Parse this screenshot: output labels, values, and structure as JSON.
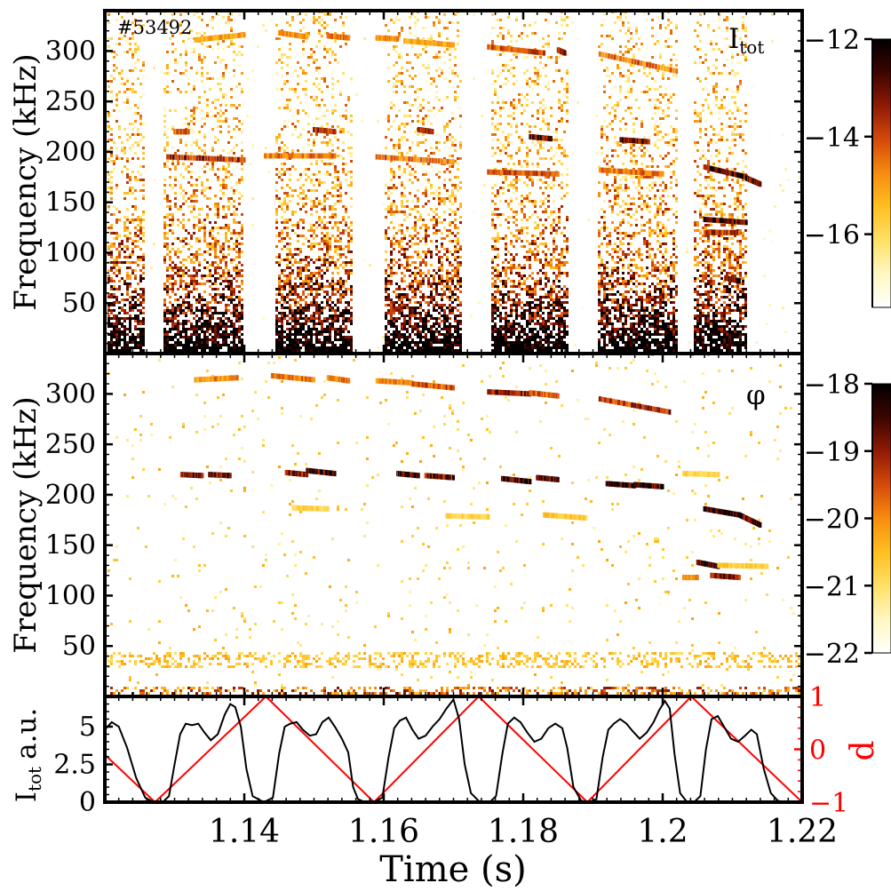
{
  "shot_label": "#53492",
  "colors": {
    "black": "#000000",
    "red": "#ff0000",
    "axis": "#000000"
  },
  "colormap": [
    "#ffffff",
    "#fff7c0",
    "#ffe066",
    "#ffbf1f",
    "#f78c10",
    "#d44a0a",
    "#8f1a06",
    "#3d0500",
    "#000000"
  ],
  "chart_data": [
    {
      "type": "heatmap",
      "id": "spectrogram_itot",
      "signal_label": "I",
      "signal_subscript": "tot",
      "ylabel": "Frequency (kHz)",
      "xlim": [
        1.12,
        1.22
      ],
      "ylim": [
        0,
        340
      ],
      "yticks": [
        50,
        100,
        150,
        200,
        250,
        300
      ],
      "colorbar": {
        "range": [
          -17.5,
          -12
        ],
        "ticks": [
          "−12",
          "−14",
          "−16"
        ],
        "tick_values": [
          -12,
          -14,
          -16
        ]
      },
      "active_windows": [
        [
          1.1203,
          1.1254
        ],
        [
          1.1283,
          1.1398
        ],
        [
          1.1441,
          1.1555
        ],
        [
          1.1598,
          1.1711
        ],
        [
          1.1752,
          1.1864
        ],
        [
          1.1905,
          1.2019
        ],
        [
          1.2043,
          1.212
        ]
      ],
      "mode_tracks": [
        {
          "t": [
            1.133,
            1.14
          ],
          "f": [
            311,
            316
          ],
          "z": 0.45
        },
        {
          "t": [
            1.145,
            1.149
          ],
          "f": [
            318,
            314
          ],
          "z": 0.5
        },
        {
          "t": [
            1.152,
            1.155
          ],
          "f": [
            315,
            313
          ],
          "z": 0.55
        },
        {
          "t": [
            1.159,
            1.162
          ],
          "f": [
            313,
            312
          ],
          "z": 0.5
        },
        {
          "t": [
            1.163,
            1.17
          ],
          "f": [
            310,
            306
          ],
          "z": 0.45
        },
        {
          "t": [
            1.175,
            1.183
          ],
          "f": [
            304,
            298
          ],
          "z": 0.6
        },
        {
          "t": [
            1.185,
            1.186
          ],
          "f": [
            301,
            298
          ],
          "z": 0.7
        },
        {
          "t": [
            1.191,
            1.202
          ],
          "f": [
            297,
            280
          ],
          "z": 0.55
        },
        {
          "t": [
            1.129,
            1.14
          ],
          "f": [
            195,
            192
          ],
          "z": 0.7
        },
        {
          "t": [
            1.143,
            1.153
          ],
          "f": [
            196,
            196
          ],
          "z": 0.55
        },
        {
          "t": [
            1.159,
            1.17
          ],
          "f": [
            195,
            190
          ],
          "z": 0.55
        },
        {
          "t": [
            1.175,
            1.185
          ],
          "f": [
            180,
            178
          ],
          "z": 0.6
        },
        {
          "t": [
            1.191,
            1.2
          ],
          "f": [
            182,
            178
          ],
          "z": 0.55
        },
        {
          "t": [
            1.13,
            1.132
          ],
          "f": [
            220,
            220
          ],
          "z": 0.6
        },
        {
          "t": [
            1.15,
            1.153
          ],
          "f": [
            222,
            220
          ],
          "z": 0.7
        },
        {
          "t": [
            1.165,
            1.167
          ],
          "f": [
            222,
            220
          ],
          "z": 0.7
        },
        {
          "t": [
            1.181,
            1.184
          ],
          "f": [
            215,
            213
          ],
          "z": 0.8
        },
        {
          "t": [
            1.194,
            1.198
          ],
          "f": [
            212,
            210
          ],
          "z": 0.8
        },
        {
          "t": [
            1.206,
            1.212
          ],
          "f": [
            185,
            175
          ],
          "z": 0.85
        },
        {
          "t": [
            1.212,
            1.214
          ],
          "f": [
            174,
            168
          ],
          "z": 0.85
        },
        {
          "t": [
            1.206,
            1.212
          ],
          "f": [
            133,
            130
          ],
          "z": 0.9
        },
        {
          "t": [
            1.206,
            1.211
          ],
          "f": [
            120,
            120
          ],
          "z": 0.7
        },
        {
          "t": [
            1.209,
            1.211
          ],
          "f": [
            75,
            72
          ],
          "z": 0.8
        }
      ]
    },
    {
      "type": "heatmap",
      "id": "spectrogram_phi",
      "signal_label": "φ",
      "ylabel": "Frequency (kHz)",
      "xlim": [
        1.12,
        1.22
      ],
      "ylim": [
        0,
        340
      ],
      "yticks": [
        50,
        100,
        150,
        200,
        250,
        300
      ],
      "colorbar": {
        "range": [
          -22,
          -18
        ],
        "ticks": [
          "−18",
          "−19",
          "−20",
          "−21",
          "−22"
        ],
        "tick_values": [
          -18,
          -19,
          -20,
          -21,
          -22
        ]
      },
      "mode_tracks": [
        {
          "t": [
            1.133,
            1.139
          ],
          "f": [
            314,
            316
          ],
          "z": 0.5
        },
        {
          "t": [
            1.144,
            1.15
          ],
          "f": [
            318,
            314
          ],
          "z": 0.55
        },
        {
          "t": [
            1.152,
            1.155
          ],
          "f": [
            316,
            313
          ],
          "z": 0.55
        },
        {
          "t": [
            1.159,
            1.164
          ],
          "f": [
            313,
            311
          ],
          "z": 0.5
        },
        {
          "t": [
            1.164,
            1.17
          ],
          "f": [
            310,
            306
          ],
          "z": 0.6
        },
        {
          "t": [
            1.175,
            1.181
          ],
          "f": [
            302,
            300
          ],
          "z": 0.75
        },
        {
          "t": [
            1.181,
            1.185
          ],
          "f": [
            301,
            298
          ],
          "z": 0.6
        },
        {
          "t": [
            1.191,
            1.201
          ],
          "f": [
            295,
            282
          ],
          "z": 0.7
        },
        {
          "t": [
            1.131,
            1.134
          ],
          "f": [
            220,
            219
          ],
          "z": 0.8
        },
        {
          "t": [
            1.135,
            1.138
          ],
          "f": [
            220,
            219
          ],
          "z": 0.8
        },
        {
          "t": [
            1.146,
            1.149
          ],
          "f": [
            222,
            220
          ],
          "z": 0.8
        },
        {
          "t": [
            1.149,
            1.153
          ],
          "f": [
            224,
            221
          ],
          "z": 0.9
        },
        {
          "t": [
            1.162,
            1.165
          ],
          "f": [
            221,
            219
          ],
          "z": 0.85
        },
        {
          "t": [
            1.166,
            1.17
          ],
          "f": [
            219,
            217
          ],
          "z": 0.8
        },
        {
          "t": [
            1.177,
            1.181
          ],
          "f": [
            216,
            213
          ],
          "z": 0.95
        },
        {
          "t": [
            1.182,
            1.185
          ],
          "f": [
            217,
            215
          ],
          "z": 0.9
        },
        {
          "t": [
            1.192,
            1.196
          ],
          "f": [
            211,
            209
          ],
          "z": 0.95
        },
        {
          "t": [
            1.196,
            1.2
          ],
          "f": [
            210,
            208
          ],
          "z": 0.9
        },
        {
          "t": [
            1.206,
            1.211
          ],
          "f": [
            186,
            180
          ],
          "z": 1.0
        },
        {
          "t": [
            1.211,
            1.214
          ],
          "f": [
            180,
            170
          ],
          "z": 0.9
        },
        {
          "t": [
            1.205,
            1.208
          ],
          "f": [
            133,
            129
          ],
          "z": 0.95
        },
        {
          "t": [
            1.207,
            1.211
          ],
          "f": [
            120,
            118
          ],
          "z": 0.8
        },
        {
          "t": [
            1.203,
            1.205
          ],
          "f": [
            118,
            118
          ],
          "z": 0.5
        },
        {
          "t": [
            1.208,
            1.215
          ],
          "f": [
            130,
            129
          ],
          "z": 0.35
        },
        {
          "t": [
            1.147,
            1.152
          ],
          "f": [
            187,
            186
          ],
          "z": 0.3
        },
        {
          "t": [
            1.169,
            1.175
          ],
          "f": [
            179,
            178
          ],
          "z": 0.3
        },
        {
          "t": [
            1.183,
            1.189
          ],
          "f": [
            180,
            177
          ],
          "z": 0.35
        },
        {
          "t": [
            1.203,
            1.208
          ],
          "f": [
            221,
            220
          ],
          "z": 0.3
        }
      ],
      "baseline_band_kHz": 36
    },
    {
      "type": "line",
      "id": "time_traces",
      "xlabel": "Time (s)",
      "xlim": [
        1.12,
        1.22
      ],
      "xticks": [
        1.14,
        1.16,
        1.18,
        1.2,
        1.22
      ],
      "xtick_labels": [
        "1.14",
        "1.16",
        "1.18",
        "1.2",
        "1.22"
      ],
      "ylabel_left": "I",
      "ylabel_left_subscript": "tot",
      "ylabel_left_suffix": "a.u.",
      "ylim_left": [
        0,
        7
      ],
      "yticks_left": [
        0,
        2.5,
        5
      ],
      "ytick_labels_left": [
        "0",
        "2.5",
        "5"
      ],
      "ylabel_right": "d",
      "ylim_right": [
        -1,
        1
      ],
      "yticks_right": [
        -1,
        0,
        1
      ],
      "ytick_labels_right": [
        "−1",
        "0",
        "1"
      ],
      "series": [
        {
          "name": "I_tot",
          "color": "#000000",
          "axis": "left",
          "x": [
            1.12,
            1.121,
            1.122,
            1.1232,
            1.1245,
            1.1258,
            1.127,
            1.1283,
            1.1292,
            1.13,
            1.1308,
            1.1316,
            1.1325,
            1.1334,
            1.1343,
            1.1352,
            1.1362,
            1.1372,
            1.138,
            1.1387,
            1.1395,
            1.1403,
            1.1412,
            1.1428,
            1.1441,
            1.145,
            1.1458,
            1.1466,
            1.1475,
            1.1484,
            1.1494,
            1.1503,
            1.1512,
            1.1521,
            1.153,
            1.154,
            1.1549,
            1.1556,
            1.1563,
            1.1573,
            1.1586,
            1.1598,
            1.1607,
            1.1615,
            1.1623,
            1.1632,
            1.1641,
            1.165,
            1.166,
            1.167,
            1.168,
            1.169,
            1.17,
            1.1708,
            1.1716,
            1.1725,
            1.1738,
            1.1752,
            1.1761,
            1.177,
            1.1778,
            1.1787,
            1.1796,
            1.1806,
            1.1816,
            1.1826,
            1.1836,
            1.1846,
            1.1856,
            1.1863,
            1.1872,
            1.1883,
            1.1894,
            1.1905,
            1.1914,
            1.1922,
            1.193,
            1.1939,
            1.1948,
            1.1957,
            1.1967,
            1.1977,
            1.1987,
            1.1995,
            1.2003,
            1.201,
            1.2017,
            1.2025,
            1.2035,
            1.2045,
            1.2054,
            1.2062,
            1.207,
            1.2079,
            1.2088,
            1.2098,
            1.2108,
            1.2118,
            1.2127,
            1.2135,
            1.2145,
            1.2155,
            1.2165,
            1.2175,
            1.2185,
            1.2195,
            1.22
          ],
          "y": [
            4.8,
            5.3,
            5.0,
            3.6,
            1.6,
            0.3,
            0.0,
            0.0,
            0.4,
            2.5,
            4.5,
            5.2,
            5.1,
            5.2,
            4.6,
            4.1,
            4.5,
            5.8,
            6.5,
            6.3,
            5.0,
            2.2,
            0.4,
            0.0,
            0.3,
            3.2,
            5.0,
            5.2,
            5.3,
            4.8,
            4.4,
            4.5,
            5.3,
            5.6,
            5.0,
            4.2,
            3.3,
            1.0,
            0.2,
            0.0,
            0.0,
            0.3,
            3.0,
            4.9,
            5.4,
            5.6,
            4.8,
            4.2,
            4.4,
            5.0,
            5.5,
            6.2,
            6.8,
            5.5,
            2.5,
            0.6,
            0.0,
            0.0,
            0.4,
            3.2,
            5.2,
            5.6,
            5.3,
            4.6,
            4.0,
            4.2,
            4.9,
            5.2,
            4.9,
            3.6,
            1.0,
            0.1,
            0.0,
            0.2,
            3.0,
            4.8,
            5.2,
            5.5,
            5.2,
            4.7,
            4.2,
            4.6,
            5.3,
            6.1,
            6.7,
            6.2,
            3.2,
            0.6,
            0.0,
            0.0,
            0.4,
            3.5,
            5.5,
            5.7,
            5.0,
            4.2,
            4.0,
            4.4,
            4.8,
            4.5,
            2.2,
            0.6,
            0.1,
            0.0,
            0.0,
            0.0,
            0.0
          ]
        },
        {
          "name": "d",
          "color": "#ff0000",
          "axis": "right",
          "x": [
            1.12,
            1.1272,
            1.1431,
            1.1586,
            1.1736,
            1.1892,
            1.2041,
            1.22
          ],
          "y": [
            -0.1,
            -1.0,
            1.0,
            -1.0,
            1.0,
            -1.0,
            1.0,
            -1.0
          ]
        }
      ]
    }
  ]
}
